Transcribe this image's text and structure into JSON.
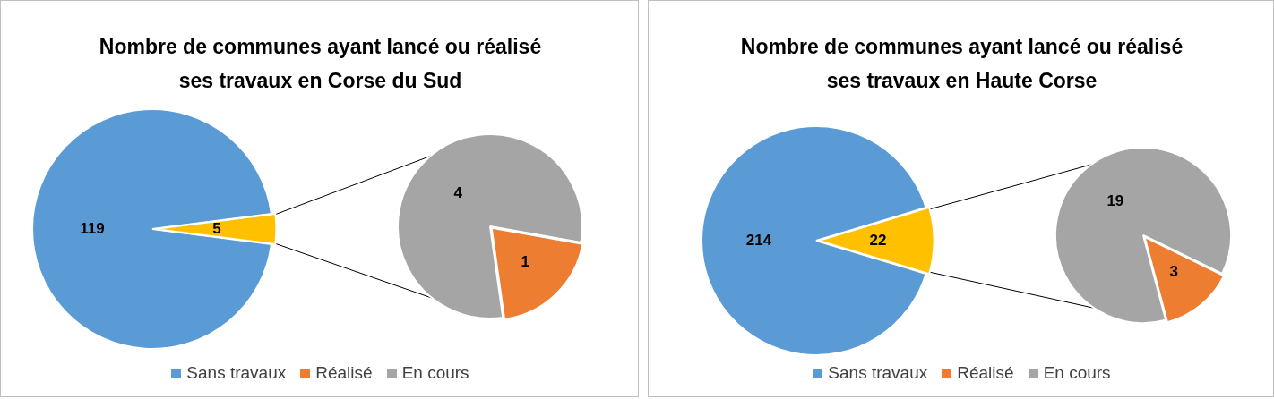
{
  "chart_data": [
    {
      "type": "pie",
      "title": "Nombre de communes ayant lancé ou réalisé ses travaux en Corse du Sud",
      "categories": [
        "Sans travaux",
        null
      ],
      "values": [
        119,
        5
      ],
      "colors": [
        "#5b9bd5",
        "#ffc000"
      ],
      "data_labels": true,
      "legend": "bottom"
    },
    {
      "type": "pie",
      "categories": [
        "Réalisé",
        "En cours"
      ],
      "values": [
        1,
        4
      ],
      "colors": [
        "#ed7d31",
        "#a5a5a5"
      ],
      "data_labels": true,
      "legend": "bottom"
    },
    {
      "type": "pie",
      "title": "Nombre de communes ayant lancé ou réalisé ses travaux en Haute Corse",
      "categories": [
        "Sans travaux",
        null
      ],
      "values": [
        214,
        22
      ],
      "colors": [
        "#5b9bd5",
        "#ffc000"
      ],
      "data_labels": true,
      "legend": "bottom"
    },
    {
      "type": "pie",
      "categories": [
        "Réalisé",
        "En cours"
      ],
      "values": [
        3,
        19
      ],
      "colors": [
        "#ed7d31",
        "#a5a5a5"
      ],
      "data_labels": true,
      "legend": "bottom"
    }
  ]
}
